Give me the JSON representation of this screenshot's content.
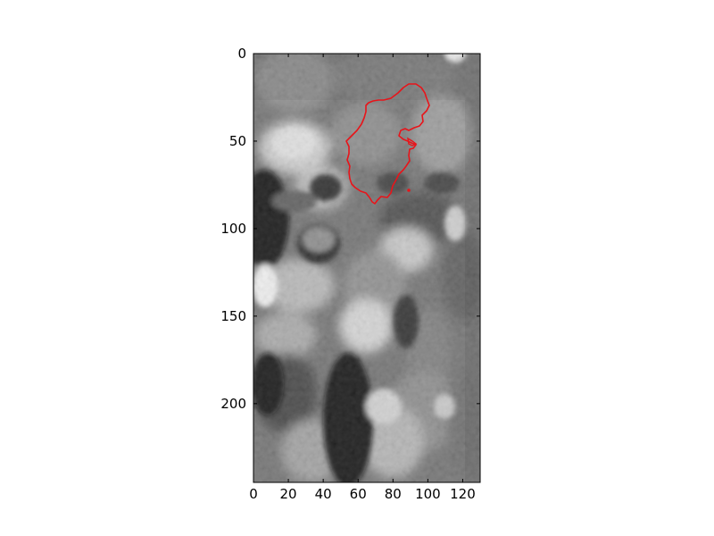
{
  "figure": {
    "image": {
      "description_tag": "grayscale-ct-slice",
      "colormap": "gray",
      "x_range": [
        0,
        130
      ],
      "y_range": [
        0,
        245
      ],
      "y_inverted": true
    },
    "axes": {
      "x_ticks": [
        "0",
        "20",
        "40",
        "60",
        "80",
        "100",
        "120"
      ],
      "y_ticks": [
        "0",
        "50",
        "100",
        "150",
        "200"
      ]
    },
    "overlay": {
      "type": "contour",
      "color": "#e8141a"
    }
  }
}
